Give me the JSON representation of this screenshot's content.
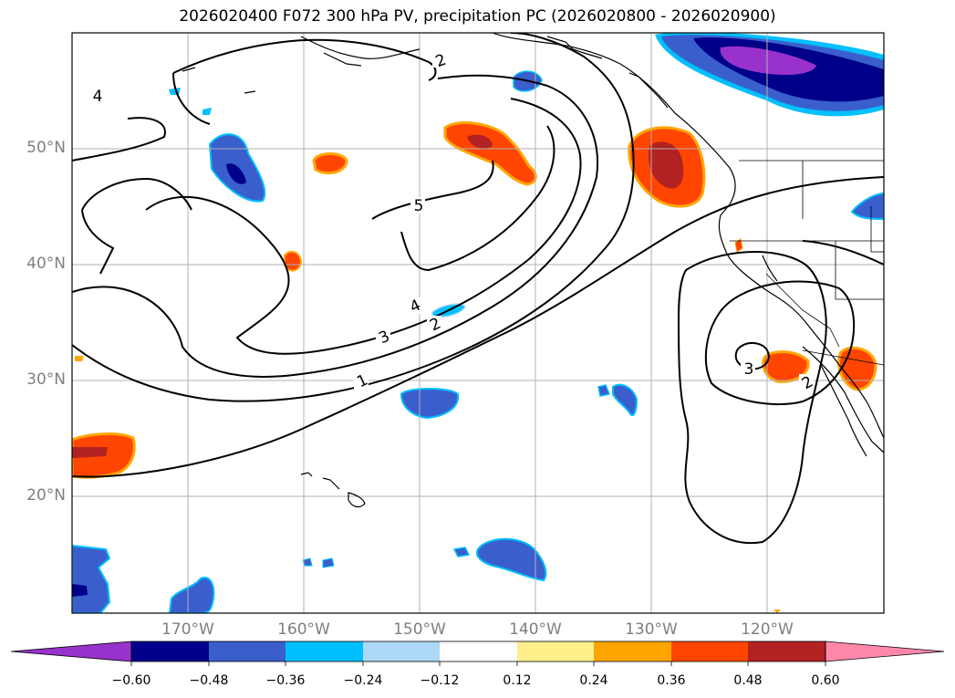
{
  "title": "2026020400 F072 300 hPa PV, precipitation PC (2026020800 - 2026020900)",
  "lat_labels": [
    "50°N",
    "40°N",
    "30°N",
    "20°N"
  ],
  "lon_labels": [
    "170°W",
    "160°W",
    "150°W",
    "140°W",
    "130°W",
    "120°W"
  ],
  "contour_labels": [
    "4",
    "2",
    "5",
    "4",
    "3",
    "2",
    "1",
    "3",
    "2"
  ],
  "colorbar": {
    "ticks": [
      "−0.60",
      "−0.48",
      "−0.36",
      "−0.24",
      "−0.12",
      "0.12",
      "0.24",
      "0.36",
      "0.48",
      "0.60"
    ],
    "colors": [
      "#9932cc",
      "#00008b",
      "#3a5fcd",
      "#00bfff",
      "#add8f6",
      "#ffffff",
      "#fff08c",
      "#ffa500",
      "#ff4500",
      "#b22222",
      "#ff88aa"
    ]
  }
}
